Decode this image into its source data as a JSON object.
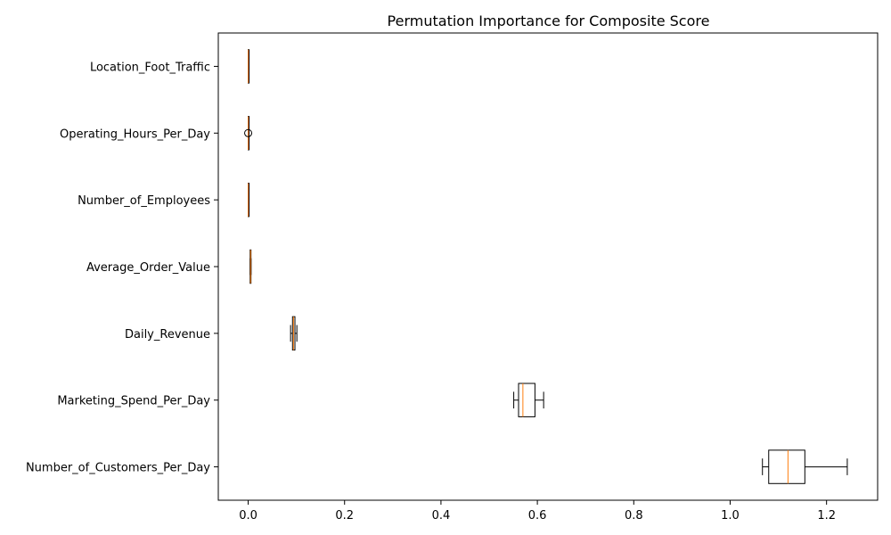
{
  "chart_data": {
    "type": "boxplot",
    "orientation": "horizontal",
    "title": "Permutation Importance for Composite Score",
    "xlabel": "",
    "ylabel": "",
    "xlim": [
      -0.062,
      1.306
    ],
    "xticks": [
      0.0,
      0.2,
      0.4,
      0.6,
      0.8,
      1.0,
      1.2
    ],
    "xtick_labels": [
      "0.0",
      "0.2",
      "0.4",
      "0.6",
      "0.8",
      "1.0",
      "1.2"
    ],
    "grid": false,
    "box_color": "#000000",
    "median_color": "#ff7f0e",
    "categories": [
      "Number_of_Customers_Per_Day",
      "Marketing_Spend_Per_Day",
      "Daily_Revenue",
      "Average_Order_Value",
      "Number_of_Employees",
      "Operating_Hours_Per_Day",
      "Location_Foot_Traffic"
    ],
    "boxes": [
      {
        "whisker_low": 1.067,
        "q1": 1.08,
        "median": 1.12,
        "q3": 1.155,
        "whisker_high": 1.243,
        "outliers": []
      },
      {
        "whisker_low": 0.551,
        "q1": 0.561,
        "median": 0.57,
        "q3": 0.595,
        "whisker_high": 0.613,
        "outliers": []
      },
      {
        "whisker_low": 0.088,
        "q1": 0.092,
        "median": 0.094,
        "q3": 0.097,
        "whisker_high": 0.101,
        "outliers": []
      },
      {
        "whisker_low": 0.004,
        "q1": 0.004,
        "median": 0.005,
        "q3": 0.005,
        "whisker_high": 0.006,
        "outliers": []
      },
      {
        "whisker_low": 0.0,
        "q1": 0.0,
        "median": 0.0,
        "q3": 0.0005,
        "whisker_high": 0.001,
        "outliers": []
      },
      {
        "whisker_low": 0.0,
        "q1": 0.0,
        "median": 0.0,
        "q3": 0.0005,
        "whisker_high": 0.001,
        "outliers": [
          0.0
        ]
      },
      {
        "whisker_low": 0.0,
        "q1": 0.0,
        "median": 0.0,
        "q3": 0.0005,
        "whisker_high": 0.001,
        "outliers": []
      }
    ]
  }
}
